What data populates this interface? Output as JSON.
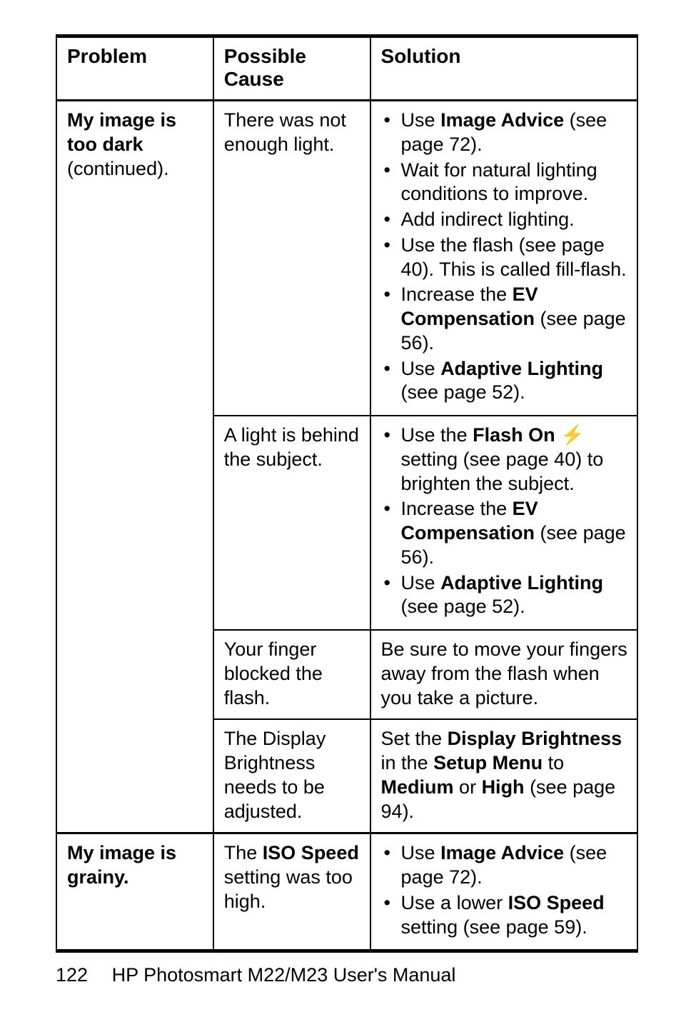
{
  "table": {
    "headers": {
      "problem": "Problem",
      "cause": "Possible Cause",
      "solution": "Solution"
    },
    "group1": {
      "problem_l1": "My image is",
      "problem_l2": "too dark",
      "problem_l3": "(continued).",
      "row1": {
        "cause_l1": "There was not",
        "cause_l2": "enough light.",
        "b1a": "Use ",
        "b1b": "Image Advice",
        "b1c": " (see page 72).",
        "b2": "Wait for natural lighting conditions to improve.",
        "b3": "Add indirect lighting.",
        "b4": "Use the flash (see page 40). This is called fill-flash.",
        "b5a": "Increase the ",
        "b5b": "EV Compensation",
        "b5c": " (see page 56).",
        "b6a": "Use ",
        "b6b": "Adaptive Lighting",
        "b6c": " (see page 52)."
      },
      "row2": {
        "cause_l1": "A light is behind",
        "cause_l2": "the subject.",
        "b1a": "Use the ",
        "b1b": "Flash On",
        "b1c": " setting (see page 40) to brighten the subject.",
        "b2a": "Increase the ",
        "b2b": "EV Compensation",
        "b2c": " (see page 56).",
        "b3a": "Use ",
        "b3b": "Adaptive Lighting",
        "b3c": " (see page 52)."
      },
      "row3": {
        "cause_l1": "Your finger",
        "cause_l2": "blocked the",
        "cause_l3": "flash.",
        "sol": "Be sure to move your fingers away from the flash when you take a picture."
      },
      "row4": {
        "cause_l1": "The Display",
        "cause_l2": "Brightness",
        "cause_l3": "needs to be",
        "cause_l4": "adjusted.",
        "s_a": "Set the ",
        "s_b": "Display Brightness",
        "s_c": " in the ",
        "s_d": "Setup Menu",
        "s_e": " to ",
        "s_f": "Medium",
        "s_g": " or ",
        "s_h": "High",
        "s_i": " (see page 94)."
      }
    },
    "group2": {
      "problem_l1": "My image is",
      "problem_l2": "grainy.",
      "cause_l1a": "The ",
      "cause_l1b": "ISO Speed",
      "cause_l2": "setting was too",
      "cause_l3": "high.",
      "b1a": "Use ",
      "b1b": "Image Advice",
      "b1c": " (see page 72).",
      "b2a": "Use a lower ",
      "b2b": "ISO Speed",
      "b2c": " setting (see page 59)."
    }
  },
  "footer": {
    "page": "122",
    "title": "HP Photosmart M22/M23 User's Manual"
  },
  "flash_icon": "⚡"
}
